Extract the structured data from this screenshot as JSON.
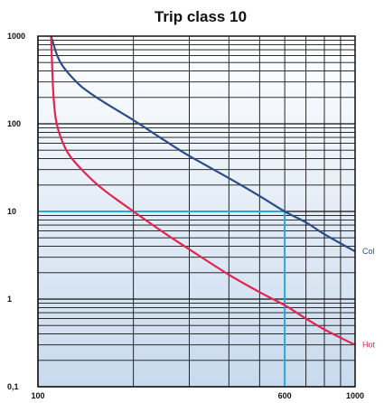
{
  "chart_data": {
    "type": "line",
    "title": "Trip class 10",
    "xlabel": "",
    "ylabel": "",
    "x_scale": "log",
    "y_scale": "log",
    "xlim": [
      100,
      1000
    ],
    "ylim": [
      0.1,
      1000
    ],
    "x_tick_labels": [
      {
        "value": 100,
        "label": "100"
      },
      {
        "value": 600,
        "label": "600"
      },
      {
        "value": 1000,
        "label": "1000"
      }
    ],
    "y_tick_labels": [
      {
        "value": 1000,
        "label": "1000"
      },
      {
        "value": 100,
        "label": "100"
      },
      {
        "value": 10,
        "label": "10"
      },
      {
        "value": 1,
        "label": "1"
      },
      {
        "value": 0.1,
        "label": "0,1"
      }
    ],
    "grid": true,
    "background_gradient": [
      "#ffffff",
      "#c8daee"
    ],
    "series": [
      {
        "name": "Col",
        "color": "#2b4c8c",
        "x": [
          110,
          115,
          120,
          130,
          140,
          160,
          200,
          250,
          300,
          400,
          500,
          600,
          700,
          800,
          1000
        ],
        "y": [
          1000,
          600,
          450,
          320,
          250,
          180,
          110,
          65,
          43,
          24,
          15,
          10,
          7.5,
          5.5,
          3.5
        ]
      },
      {
        "name": "Hot",
        "color": "#e0254f",
        "x": [
          110,
          111,
          112,
          114,
          118,
          125,
          140,
          160,
          200,
          250,
          300,
          400,
          500,
          600,
          700,
          800,
          1000
        ],
        "y": [
          1000,
          400,
          200,
          110,
          70,
          45,
          28,
          18,
          10,
          5.7,
          3.7,
          1.9,
          1.2,
          0.85,
          0.6,
          0.45,
          0.3
        ]
      }
    ],
    "reference": {
      "color": "#2aa7d9",
      "x": 600,
      "y": 10
    }
  }
}
